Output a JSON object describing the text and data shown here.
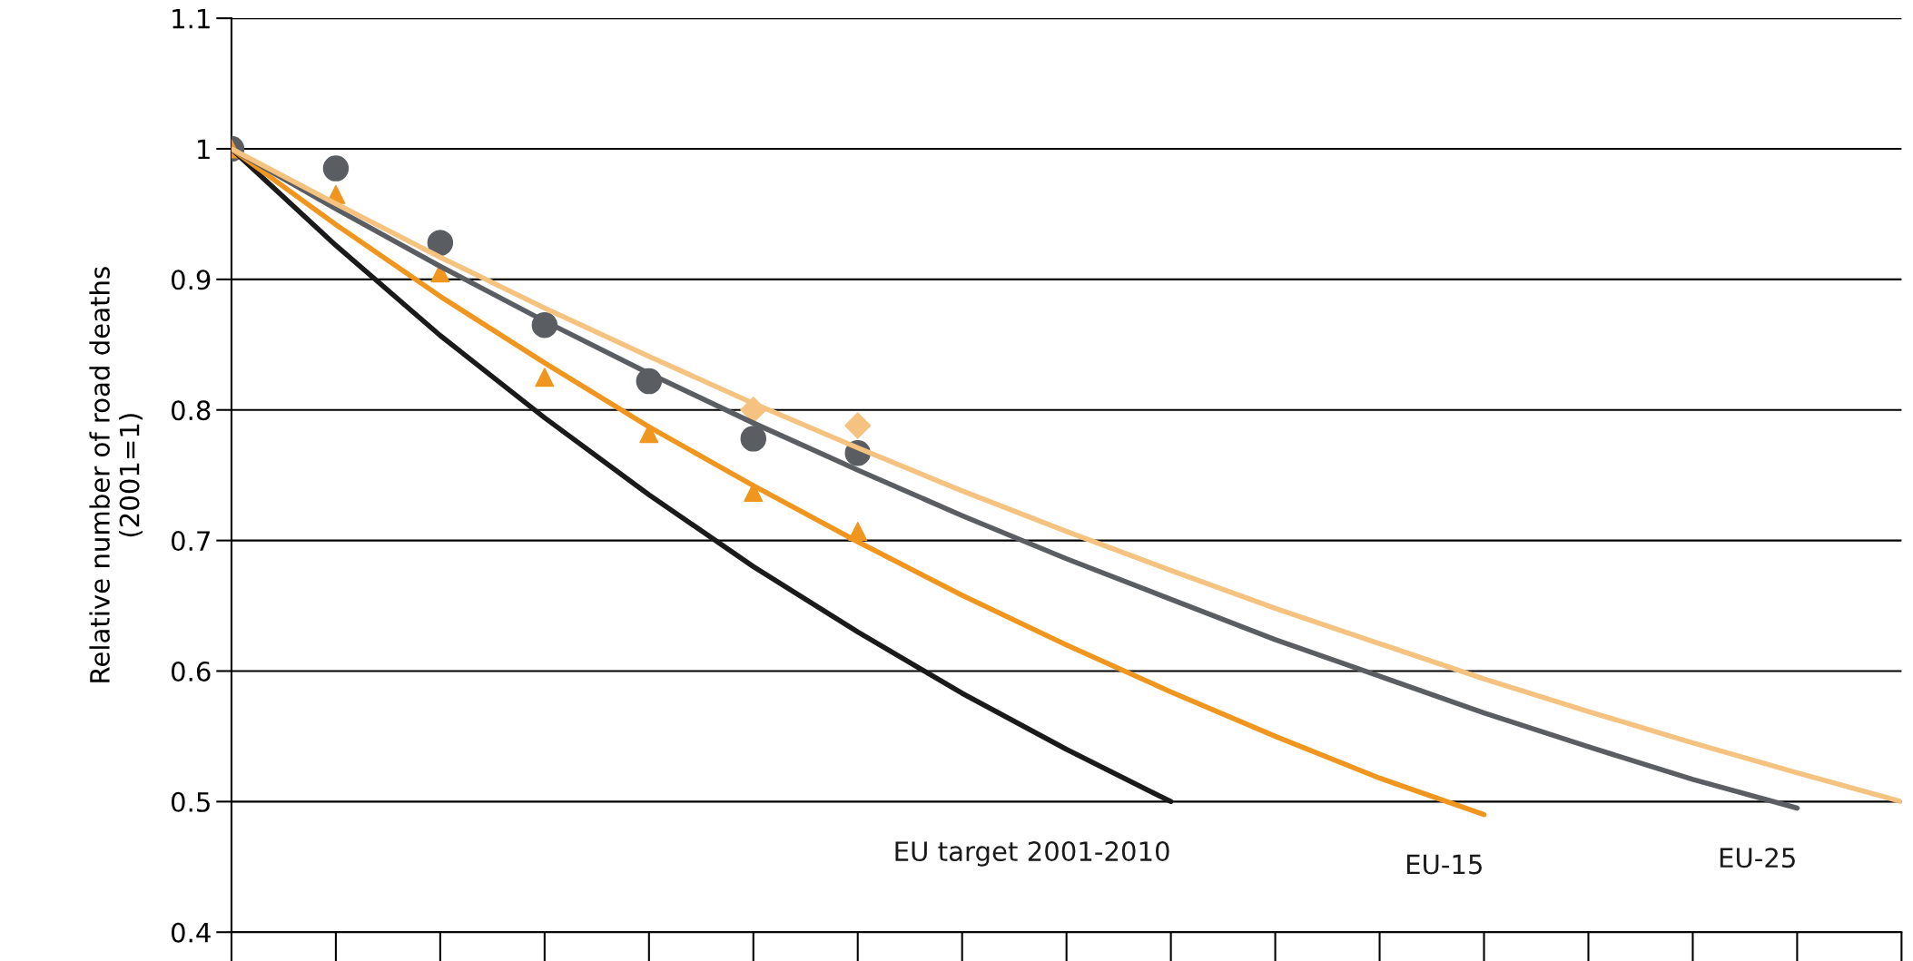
{
  "chart_data": {
    "type": "line",
    "ylabel": "Relative number of road deaths\n(2001=1)",
    "categories": [
      null,
      null,
      null,
      null,
      null,
      null,
      null,
      null,
      null,
      null,
      null,
      null,
      null,
      null,
      null,
      null,
      null
    ],
    "ylim": [
      0.4,
      1.1
    ],
    "yticks": [
      0.4,
      0.5,
      0.6,
      0.7,
      0.8,
      0.9,
      1,
      1.1
    ],
    "grid": "y",
    "legend": false,
    "series": [
      {
        "name": "EU target 2001-2010",
        "color": "#1a1a1a",
        "marker": "none",
        "values": [
          1,
          0.926,
          0.857,
          0.794,
          0.735,
          0.68,
          0.63,
          0.583,
          0.54,
          0.5,
          null,
          null,
          null,
          null,
          null,
          null,
          null
        ]
      },
      {
        "name": "EU-15",
        "color": "#f0961e",
        "marker": "none",
        "values": [
          1,
          0.942,
          0.887,
          0.836,
          0.787,
          0.742,
          0.699,
          0.658,
          0.62,
          0.584,
          0.55,
          0.518,
          0.49,
          null,
          null,
          null,
          null
        ]
      },
      {
        "name": "EU-25",
        "color": "#5a5e63",
        "marker": "none",
        "values": [
          1,
          0.954,
          0.91,
          0.868,
          0.828,
          0.79,
          0.754,
          0.719,
          0.686,
          0.655,
          0.624,
          0.596,
          0.568,
          0.542,
          0.517,
          0.495,
          null
        ]
      },
      {
        "color": "#f5c27f",
        "marker": "none",
        "values": [
          1,
          0.958,
          0.917,
          0.878,
          0.841,
          0.805,
          0.771,
          0.738,
          0.707,
          0.677,
          0.648,
          0.621,
          0.594,
          0.569,
          0.545,
          0.522,
          0.5
        ]
      },
      {
        "type": "scatter",
        "color": "#f5c27f",
        "marker": "diamond",
        "values": [
          null,
          null,
          null,
          null,
          null,
          0.8,
          0.788,
          null,
          null,
          null,
          null,
          null,
          null,
          null,
          null,
          null,
          null
        ]
      },
      {
        "type": "scatter",
        "color": "#5a5e63",
        "marker": "circle",
        "values": [
          1,
          0.985,
          0.928,
          0.865,
          0.822,
          0.778,
          0.767,
          null,
          null,
          null,
          null,
          null,
          null,
          null,
          null,
          null,
          null
        ]
      },
      {
        "type": "scatter",
        "color": "#f0961e",
        "marker": "triangle",
        "values": [
          1,
          0.965,
          0.905,
          0.825,
          0.782,
          0.737,
          0.707,
          null,
          null,
          null,
          null,
          null,
          null,
          null,
          null,
          null,
          null
        ]
      }
    ]
  }
}
